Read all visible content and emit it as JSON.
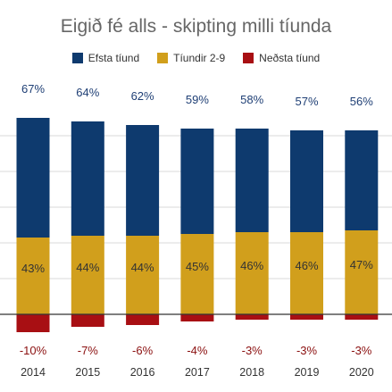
{
  "chart_data": {
    "type": "bar",
    "title": "Eigið fé alls - skipting milli tíunda",
    "xlabel": "",
    "ylabel": "",
    "categories": [
      "2014",
      "2015",
      "2016",
      "2017",
      "2018",
      "2019",
      "2020"
    ],
    "series": [
      {
        "name": "Efsta tíund",
        "color": "#0e3a6e",
        "values": [
          67,
          64,
          62,
          59,
          58,
          57,
          56
        ]
      },
      {
        "name": "Tíundir 2-9",
        "color": "#d19f1c",
        "values": [
          43,
          44,
          44,
          45,
          46,
          46,
          47
        ]
      },
      {
        "name": "Neðsta tíund",
        "color": "#a80f13",
        "values": [
          -10,
          -7,
          -6,
          -4,
          -3,
          -3,
          -3
        ]
      }
    ],
    "stacked": true,
    "unit": "%",
    "ylim": [
      -10,
      110
    ],
    "grid": true,
    "legend_position": "top"
  }
}
